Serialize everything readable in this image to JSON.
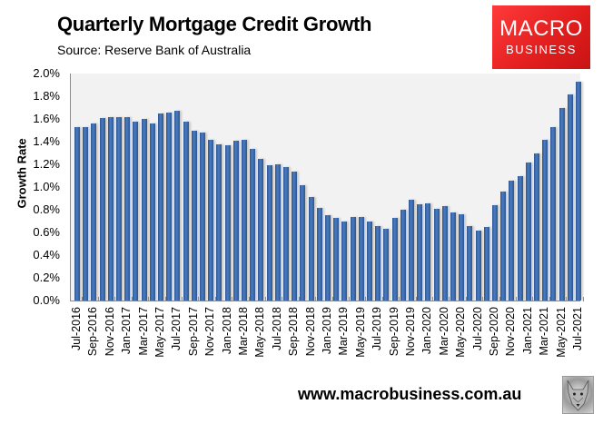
{
  "header": {
    "title": "Quarterly Mortgage Credit Growth",
    "subtitle": "Source: Reserve Bank of Australia"
  },
  "logo": {
    "line1": "MACRO",
    "line2": "BUSINESS",
    "color": "#e82323"
  },
  "footer": {
    "url": "www.macrobusiness.com.au",
    "icon": "wolf-icon"
  },
  "colors": {
    "bar": "#3a69a8",
    "plot_background": "#f2f2f2",
    "axis": "#8c8c8c"
  },
  "chart_data": {
    "type": "bar",
    "title": "Quarterly Mortgage Credit Growth",
    "subtitle": "Source: Reserve Bank of Australia",
    "xlabel": "",
    "ylabel": "Growth Rate",
    "ylim": [
      0,
      2.0
    ],
    "yticks": [
      "0.0%",
      "0.2%",
      "0.4%",
      "0.6%",
      "0.8%",
      "1.0%",
      "1.2%",
      "1.4%",
      "1.6%",
      "1.8%",
      "2.0%"
    ],
    "grid": false,
    "legend": null,
    "xtick_labels": [
      "Jul-2016",
      "Sep-2016",
      "Nov-2016",
      "Jan-2017",
      "Mar-2017",
      "May-2017",
      "Jul-2017",
      "Sep-2017",
      "Nov-2017",
      "Jan-2018",
      "Mar-2018",
      "May-2018",
      "Jul-2018",
      "Sep-2018",
      "Nov-2018",
      "Jan-2019",
      "Mar-2019",
      "May-2019",
      "Jul-2019",
      "Sep-2019",
      "Nov-2019",
      "Jan-2020",
      "Mar-2020",
      "May-2020",
      "Jul-2020",
      "Sep-2020",
      "Nov-2020",
      "Jan-2021",
      "Mar-2021",
      "May-2021",
      "Jul-2021"
    ],
    "categories": [
      "Jul-2016",
      "Aug-2016",
      "Sep-2016",
      "Oct-2016",
      "Nov-2016",
      "Dec-2016",
      "Jan-2017",
      "Feb-2017",
      "Mar-2017",
      "Apr-2017",
      "May-2017",
      "Jun-2017",
      "Jul-2017",
      "Aug-2017",
      "Sep-2017",
      "Oct-2017",
      "Nov-2017",
      "Dec-2017",
      "Jan-2018",
      "Feb-2018",
      "Mar-2018",
      "Apr-2018",
      "May-2018",
      "Jun-2018",
      "Jul-2018",
      "Aug-2018",
      "Sep-2018",
      "Oct-2018",
      "Nov-2018",
      "Dec-2018",
      "Jan-2019",
      "Feb-2019",
      "Mar-2019",
      "Apr-2019",
      "May-2019",
      "Jun-2019",
      "Jul-2019",
      "Aug-2019",
      "Sep-2019",
      "Oct-2019",
      "Nov-2019",
      "Dec-2019",
      "Jan-2020",
      "Feb-2020",
      "Mar-2020",
      "Apr-2020",
      "May-2020",
      "Jun-2020",
      "Jul-2020",
      "Aug-2020",
      "Sep-2020",
      "Oct-2020",
      "Nov-2020",
      "Dec-2020",
      "Jan-2021",
      "Feb-2021",
      "Mar-2021",
      "Apr-2021",
      "May-2021",
      "Jun-2021",
      "Jul-2021"
    ],
    "values": [
      1.53,
      1.53,
      1.56,
      1.61,
      1.62,
      1.62,
      1.62,
      1.58,
      1.6,
      1.56,
      1.65,
      1.66,
      1.67,
      1.58,
      1.5,
      1.48,
      1.42,
      1.38,
      1.37,
      1.41,
      1.42,
      1.34,
      1.25,
      1.19,
      1.2,
      1.18,
      1.14,
      1.02,
      0.91,
      0.82,
      0.75,
      0.73,
      0.7,
      0.74,
      0.74,
      0.7,
      0.66,
      0.63,
      0.73,
      0.8,
      0.89,
      0.85,
      0.86,
      0.81,
      0.83,
      0.78,
      0.76,
      0.66,
      0.62,
      0.65,
      0.84,
      0.96,
      1.06,
      1.1,
      1.22,
      1.3,
      1.42,
      1.53,
      1.7,
      1.82,
      1.93
    ],
    "units": "%"
  }
}
